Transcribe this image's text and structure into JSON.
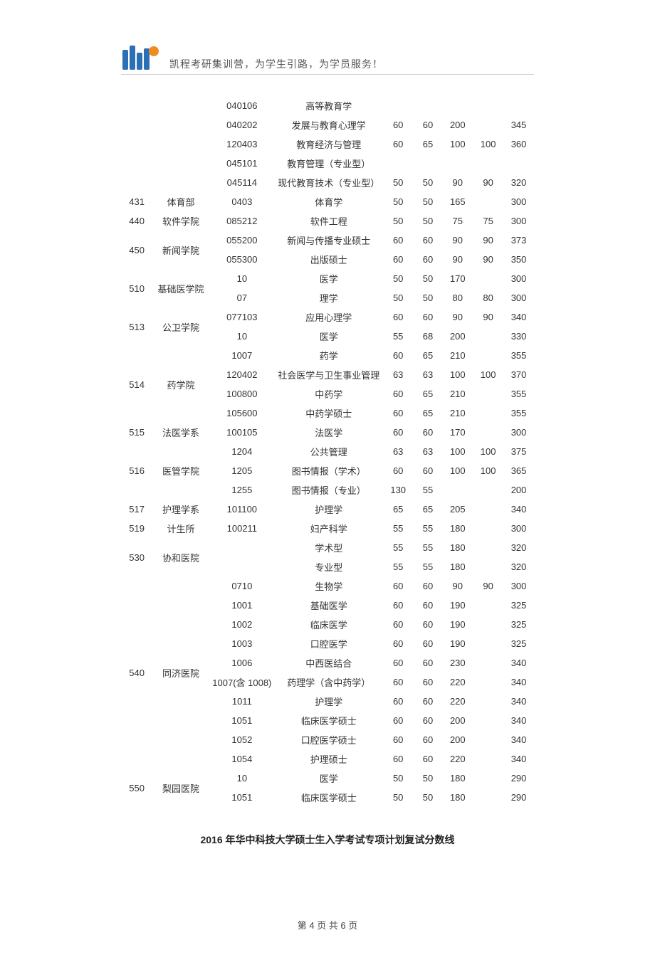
{
  "header": {
    "slogan": "凯程考研集训营，为学生引路，为学员服务！",
    "logo_colors": {
      "bar": "#2b6fb5",
      "circle": "#f08c1e"
    }
  },
  "table": {
    "columns": [
      {
        "key": "id",
        "class": "col-id"
      },
      {
        "key": "dept",
        "class": "col-dept"
      },
      {
        "key": "code",
        "class": "col-code"
      },
      {
        "key": "name",
        "class": "col-name"
      },
      {
        "key": "s1",
        "class": "col-s"
      },
      {
        "key": "s2",
        "class": "col-s"
      },
      {
        "key": "s3",
        "class": "col-s"
      },
      {
        "key": "s4",
        "class": "col-s"
      },
      {
        "key": "s5",
        "class": "col-s"
      }
    ],
    "rows": [
      {
        "id": "",
        "dept": "",
        "code": "040106",
        "name": "高等教育学",
        "s1": "",
        "s2": "",
        "s3": "",
        "s4": "",
        "s5": ""
      },
      {
        "id": "",
        "dept": "",
        "code": "040202",
        "name": "发展与教育心理学",
        "s1": "60",
        "s2": "60",
        "s3": "200",
        "s4": "",
        "s5": "345"
      },
      {
        "id": "",
        "dept": "",
        "code": "120403",
        "name": "教育经济与管理",
        "s1": "60",
        "s2": "65",
        "s3": "100",
        "s4": "100",
        "s5": "360"
      },
      {
        "id": "",
        "dept": "",
        "code": "045101",
        "name": "教育管理（专业型）",
        "s1": "",
        "s2": "",
        "s3": "",
        "s4": "",
        "s5": ""
      },
      {
        "id": "",
        "dept": "",
        "code": "045114",
        "name": "现代教育技术（专业型）",
        "s1": "50",
        "s2": "50",
        "s3": "90",
        "s4": "90",
        "s5": "320"
      },
      {
        "id": "431",
        "dept": "体育部",
        "code": "0403",
        "name": "体育学",
        "s1": "50",
        "s2": "50",
        "s3": "165",
        "s4": "",
        "s5": "300"
      },
      {
        "id": "440",
        "dept": "软件学院",
        "code": "085212",
        "name": "软件工程",
        "s1": "50",
        "s2": "50",
        "s3": "75",
        "s4": "75",
        "s5": "300"
      },
      {
        "id": "450",
        "dept": "新闻学院",
        "rowspan_id": 2,
        "rowspan_dept": 2,
        "code": "055200",
        "name": "新闻与传播专业硕士",
        "s1": "60",
        "s2": "60",
        "s3": "90",
        "s4": "90",
        "s5": "373"
      },
      {
        "code": "055300",
        "name": "出版硕士",
        "s1": "60",
        "s2": "60",
        "s3": "90",
        "s4": "90",
        "s5": "350"
      },
      {
        "id": "510",
        "dept": "基础医学院",
        "rowspan_id": 2,
        "rowspan_dept": 2,
        "code": "10",
        "name": "医学",
        "s1": "50",
        "s2": "50",
        "s3": "170",
        "s4": "",
        "s5": "300"
      },
      {
        "code": "07",
        "name": "理学",
        "s1": "50",
        "s2": "50",
        "s3": "80",
        "s4": "80",
        "s5": "300"
      },
      {
        "id": "513",
        "dept": "公卫学院",
        "rowspan_id": 2,
        "rowspan_dept": 2,
        "code": "077103",
        "name": "应用心理学",
        "s1": "60",
        "s2": "60",
        "s3": "90",
        "s4": "90",
        "s5": "340"
      },
      {
        "code": "10",
        "name": "医学",
        "s1": "55",
        "s2": "68",
        "s3": "200",
        "s4": "",
        "s5": "330"
      },
      {
        "id": "",
        "dept": "",
        "code": "1007",
        "name": "药学",
        "s1": "60",
        "s2": "65",
        "s3": "210",
        "s4": "",
        "s5": "355"
      },
      {
        "id": "514",
        "dept": "药学院",
        "rowspan_id": 2,
        "rowspan_dept": 2,
        "code": "120402",
        "name": "社会医学与卫生事业管理",
        "s1": "63",
        "s2": "63",
        "s3": "100",
        "s4": "100",
        "s5": "370"
      },
      {
        "code": "100800",
        "name": "中药学",
        "s1": "60",
        "s2": "65",
        "s3": "210",
        "s4": "",
        "s5": "355"
      },
      {
        "id": "",
        "dept": "",
        "code": "105600",
        "name": "中药学硕士",
        "s1": "60",
        "s2": "65",
        "s3": "210",
        "s4": "",
        "s5": "355"
      },
      {
        "id": "515",
        "dept": "法医学系",
        "code": "100105",
        "name": "法医学",
        "s1": "60",
        "s2": "60",
        "s3": "170",
        "s4": "",
        "s5": "300"
      },
      {
        "id": "",
        "dept": "",
        "code": "1204",
        "name": "公共管理",
        "s1": "63",
        "s2": "63",
        "s3": "100",
        "s4": "100",
        "s5": "375"
      },
      {
        "id": "516",
        "dept": "医管学院",
        "code": "1205",
        "name": "图书情报（学术）",
        "s1": "60",
        "s2": "60",
        "s3": "100",
        "s4": "100",
        "s5": "365"
      },
      {
        "id": "",
        "dept": "",
        "code": "1255",
        "name": "图书情报（专业）",
        "s1": "130",
        "s2": "55",
        "s3": "",
        "s4": "",
        "s5": "200"
      },
      {
        "id": "517",
        "dept": "护理学系",
        "code": "101100",
        "name": "护理学",
        "s1": "65",
        "s2": "65",
        "s3": "205",
        "s4": "",
        "s5": "340"
      },
      {
        "id": "519",
        "dept": "计生所",
        "code": "100211",
        "name": "妇产科学",
        "s1": "55",
        "s2": "55",
        "s3": "180",
        "s4": "",
        "s5": "300"
      },
      {
        "id": "530",
        "dept": "协和医院",
        "rowspan_id": 2,
        "rowspan_dept": 2,
        "code": "",
        "name": "学术型",
        "s1": "55",
        "s2": "55",
        "s3": "180",
        "s4": "",
        "s5": "320"
      },
      {
        "code": "",
        "name": "专业型",
        "s1": "55",
        "s2": "55",
        "s3": "180",
        "s4": "",
        "s5": "320"
      },
      {
        "id": "",
        "dept": "",
        "code": "0710",
        "name": "生物学",
        "s1": "60",
        "s2": "60",
        "s3": "90",
        "s4": "90",
        "s5": "300"
      },
      {
        "id": "",
        "dept": "",
        "code": "1001",
        "name": "基础医学",
        "s1": "60",
        "s2": "60",
        "s3": "190",
        "s4": "",
        "s5": "325"
      },
      {
        "id": "",
        "dept": "",
        "code": "1002",
        "name": "临床医学",
        "s1": "60",
        "s2": "60",
        "s3": "190",
        "s4": "",
        "s5": "325"
      },
      {
        "id": "",
        "dept": "",
        "code": "1003",
        "name": "口腔医学",
        "s1": "60",
        "s2": "60",
        "s3": "190",
        "s4": "",
        "s5": "325"
      },
      {
        "id": "540",
        "dept": "同济医院",
        "rowspan_id": 2,
        "rowspan_dept": 2,
        "code": "1006",
        "name": "中西医结合",
        "s1": "60",
        "s2": "60",
        "s3": "230",
        "s4": "",
        "s5": "340"
      },
      {
        "code": "1007(含 1008)",
        "name": "药理学（含中药学）",
        "s1": "60",
        "s2": "60",
        "s3": "220",
        "s4": "",
        "s5": "340"
      },
      {
        "id": "",
        "dept": "",
        "code": "1011",
        "name": "护理学",
        "s1": "60",
        "s2": "60",
        "s3": "220",
        "s4": "",
        "s5": "340"
      },
      {
        "id": "",
        "dept": "",
        "code": "1051",
        "name": "临床医学硕士",
        "s1": "60",
        "s2": "60",
        "s3": "200",
        "s4": "",
        "s5": "340"
      },
      {
        "id": "",
        "dept": "",
        "code": "1052",
        "name": "口腔医学硕士",
        "s1": "60",
        "s2": "60",
        "s3": "200",
        "s4": "",
        "s5": "340"
      },
      {
        "id": "",
        "dept": "",
        "code": "1054",
        "name": "护理硕士",
        "s1": "60",
        "s2": "60",
        "s3": "220",
        "s4": "",
        "s5": "340"
      },
      {
        "id": "550",
        "dept": "梨园医院",
        "rowspan_id": 2,
        "rowspan_dept": 2,
        "code": "10",
        "name": "医学",
        "s1": "50",
        "s2": "50",
        "s3": "180",
        "s4": "",
        "s5": "290"
      },
      {
        "code": "1051",
        "name": "临床医学硕士",
        "s1": "50",
        "s2": "50",
        "s3": "180",
        "s4": "",
        "s5": "290"
      }
    ]
  },
  "subtitle": "2016 年华中科技大学硕士生入学考试专项计划复试分数线",
  "footer": {
    "template": "第 {cur} 页 共 {total} 页",
    "cur": "4",
    "total": "6"
  },
  "style": {
    "font_family": "Microsoft YaHei, SimSun, sans-serif",
    "text_color": "#333333",
    "background_color": "#ffffff",
    "table_font_size": 13,
    "header_font_size": 14,
    "subtitle_font_size": 14,
    "subtitle_weight": "bold",
    "divider_color": "#cccccc"
  }
}
